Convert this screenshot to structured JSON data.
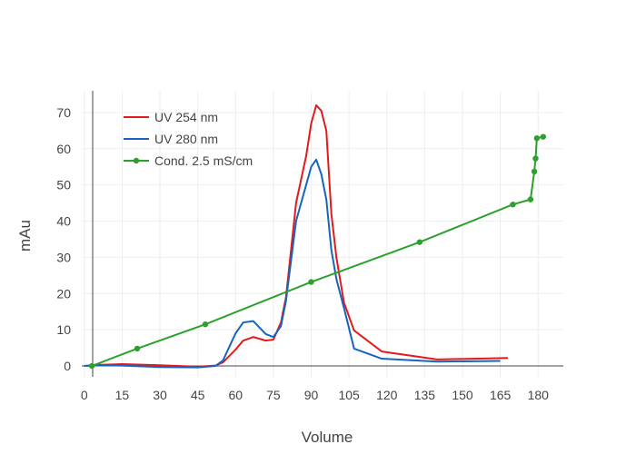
{
  "chart_data": {
    "type": "line",
    "xlabel": "Volume",
    "ylabel": "mAu",
    "xlim": [
      -1,
      190
    ],
    "ylim": [
      -3,
      76
    ],
    "xticks": [
      0,
      15,
      30,
      45,
      60,
      75,
      90,
      105,
      120,
      135,
      150,
      165,
      180
    ],
    "yticks": [
      0,
      10,
      20,
      30,
      40,
      50,
      60,
      70
    ],
    "grid": true,
    "legend_position": "top-left",
    "series": [
      {
        "name": "UV 254 nm",
        "color": "#e31a1c",
        "mode": "lines",
        "x": [
          0,
          5,
          15,
          30,
          45,
          52,
          55,
          60,
          63,
          67,
          72,
          75,
          78,
          80,
          84,
          88,
          90,
          92,
          94,
          96,
          98,
          100,
          103,
          107,
          118,
          140,
          168
        ],
        "y": [
          0,
          0.3,
          0.5,
          0.2,
          -0.2,
          0.1,
          1.0,
          4.5,
          7.0,
          8.0,
          7.0,
          7.3,
          12.0,
          19.0,
          45.0,
          58.0,
          67.0,
          72.0,
          70.5,
          65.0,
          42.0,
          30.0,
          17.5,
          9.8,
          4.0,
          1.8,
          2.2
        ]
      },
      {
        "name": "UV 280 nm",
        "color": "#1565c0",
        "mode": "lines",
        "x": [
          0,
          5,
          15,
          30,
          45,
          52,
          55,
          60,
          63,
          67,
          72,
          75,
          78,
          80,
          84,
          88,
          90,
          92,
          94,
          96,
          98,
          100,
          103,
          107,
          118,
          140,
          165
        ],
        "y": [
          0,
          0.2,
          0.1,
          -0.3,
          -0.4,
          0.0,
          1.5,
          9.0,
          12.0,
          12.4,
          8.8,
          8.0,
          11.0,
          18.0,
          40.0,
          50.0,
          55.0,
          57.0,
          53.0,
          46.0,
          32.0,
          24.0,
          16.0,
          4.8,
          2.0,
          1.2,
          1.4
        ]
      },
      {
        "name": "Cond. 2.5 mS/cm",
        "color": "#2ca02c",
        "mode": "lines+markers",
        "x": [
          3,
          21,
          48,
          90,
          133,
          170,
          177,
          178.5,
          179,
          179.5,
          182
        ],
        "y": [
          0,
          4.8,
          11.5,
          23.2,
          34.2,
          44.6,
          46.0,
          53.7,
          57.3,
          62.9,
          63.3
        ]
      }
    ]
  }
}
